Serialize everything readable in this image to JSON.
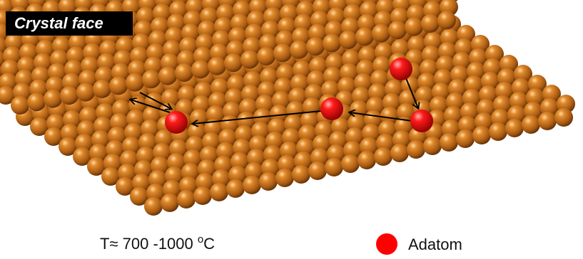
{
  "title": "Crystal face",
  "temperature": {
    "prefix": "T≈ 700 -1000 ",
    "degree": "o",
    "unit": "C"
  },
  "legend": {
    "label": "Adatom"
  }
}
